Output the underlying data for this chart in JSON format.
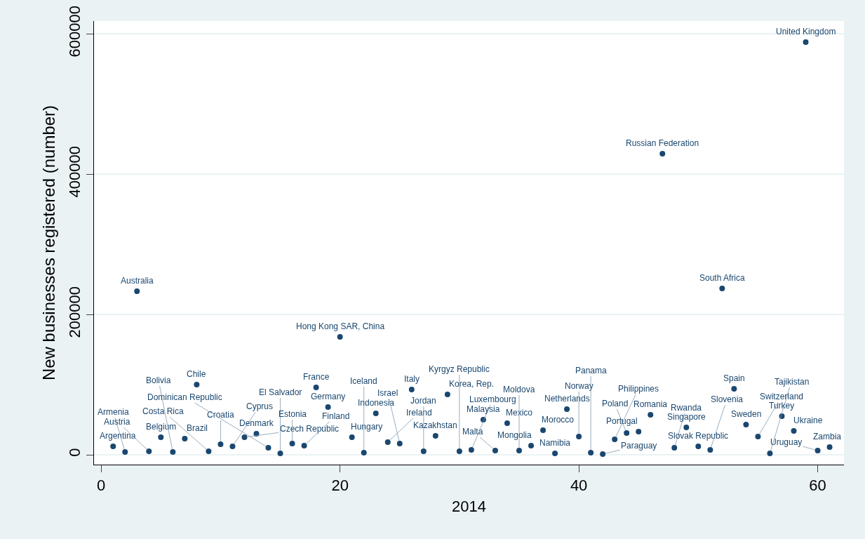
{
  "chart_data": {
    "type": "scatter",
    "xlabel": "2014",
    "ylabel": "New businesses registered (number)",
    "x": [
      1,
      2,
      3,
      4,
      5,
      6,
      7,
      8,
      9,
      10,
      11,
      12,
      13,
      14,
      15,
      16,
      17,
      18,
      19,
      20,
      21,
      22,
      23,
      24,
      25,
      26,
      27,
      28,
      29,
      30,
      31,
      32,
      33,
      34,
      35,
      36,
      37,
      38,
      39,
      40,
      41,
      42,
      43,
      44,
      45,
      46,
      47,
      48,
      49,
      50,
      51,
      52,
      53,
      54,
      55,
      56,
      57,
      58,
      59,
      60,
      61
    ],
    "values": [
      12000,
      4000,
      233000,
      5000,
      25000,
      4000,
      23000,
      100000,
      5000,
      15000,
      12000,
      25000,
      30000,
      10000,
      2000,
      16000,
      13000,
      96000,
      68000,
      168000,
      25000,
      3000,
      59000,
      18000,
      16000,
      93000,
      5000,
      27000,
      86000,
      5000,
      7000,
      50000,
      6000,
      45000,
      6000,
      13000,
      35000,
      2000,
      65000,
      26000,
      3000,
      1000,
      22000,
      31000,
      33000,
      57000,
      429000,
      10000,
      39000,
      12000,
      7000,
      237000,
      94000,
      43000,
      26000,
      2000,
      55000,
      34000,
      588000,
      6000,
      11000
    ],
    "color": "#1a476f",
    "marker": "circle",
    "grid": "y",
    "xlim": [
      -0.6,
      62.2
    ],
    "xticks": [
      0,
      20,
      40,
      60
    ],
    "ylim": [
      -14000,
      618000
    ],
    "yticks": [
      0,
      200000,
      400000,
      600000
    ],
    "annotations": [
      {
        "text": "Argentina",
        "x": 1,
        "y": 12000
      },
      {
        "text": "Armenia",
        "x": 2,
        "y": 4000
      },
      {
        "text": "Australia",
        "x": 3,
        "y": 233000
      },
      {
        "text": "Austria",
        "x": 4,
        "y": 5000
      },
      {
        "text": "Belgium",
        "x": 5,
        "y": 25000
      },
      {
        "text": "Bolivia",
        "x": 6,
        "y": 4000
      },
      {
        "text": "Brazil",
        "x": 7,
        "y": 23000
      },
      {
        "text": "Chile",
        "x": 8,
        "y": 100000
      },
      {
        "text": "Costa Rica",
        "x": 9,
        "y": 5000
      },
      {
        "text": "Croatia",
        "x": 10,
        "y": 15000
      },
      {
        "text": "Cyprus",
        "x": 11,
        "y": 12000
      },
      {
        "text": "Czech Republic",
        "x": 12,
        "y": 25000
      },
      {
        "text": "Denmark",
        "x": 13,
        "y": 30000
      },
      {
        "text": "Dominican Republic",
        "x": 14,
        "y": 10000
      },
      {
        "text": "El Salvador",
        "x": 15,
        "y": 2000
      },
      {
        "text": "Estonia",
        "x": 16,
        "y": 16000
      },
      {
        "text": "Finland",
        "x": 17,
        "y": 13000
      },
      {
        "text": "France",
        "x": 18,
        "y": 96000
      },
      {
        "text": "Germany",
        "x": 19,
        "y": 68000
      },
      {
        "text": "Hong Kong SAR, China",
        "x": 20,
        "y": 168000
      },
      {
        "text": "Hungary",
        "x": 21,
        "y": 25000
      },
      {
        "text": "Iceland",
        "x": 22,
        "y": 3000
      },
      {
        "text": "Indonesia",
        "x": 23,
        "y": 59000
      },
      {
        "text": "Ireland",
        "x": 24,
        "y": 18000
      },
      {
        "text": "Israel",
        "x": 25,
        "y": 16000
      },
      {
        "text": "Italy",
        "x": 26,
        "y": 93000
      },
      {
        "text": "Jordan",
        "x": 27,
        "y": 5000
      },
      {
        "text": "Kazakhstan",
        "x": 28,
        "y": 27000
      },
      {
        "text": "Korea, Rep.",
        "x": 29,
        "y": 86000
      },
      {
        "text": "Kyrgyz Republic",
        "x": 30,
        "y": 5000
      },
      {
        "text": "Luxembourg",
        "x": 31,
        "y": 7000
      },
      {
        "text": "Malaysia",
        "x": 32,
        "y": 50000
      },
      {
        "text": "Malta",
        "x": 33,
        "y": 6000
      },
      {
        "text": "Mexico",
        "x": 34,
        "y": 45000
      },
      {
        "text": "Moldova",
        "x": 35,
        "y": 6000
      },
      {
        "text": "Mongolia",
        "x": 36,
        "y": 13000
      },
      {
        "text": "Morocco",
        "x": 37,
        "y": 35000
      },
      {
        "text": "Namibia",
        "x": 38,
        "y": 2000
      },
      {
        "text": "Netherlands",
        "x": 39,
        "y": 65000
      },
      {
        "text": "Norway",
        "x": 40,
        "y": 26000
      },
      {
        "text": "Panama",
        "x": 41,
        "y": 3000
      },
      {
        "text": "Paraguay",
        "x": 42,
        "y": 1000
      },
      {
        "text": "Philippines",
        "x": 43,
        "y": 22000
      },
      {
        "text": "Poland",
        "x": 44,
        "y": 31000
      },
      {
        "text": "Portugal",
        "x": 45,
        "y": 33000
      },
      {
        "text": "Romania",
        "x": 46,
        "y": 57000
      },
      {
        "text": "Russian Federation",
        "x": 47,
        "y": 429000
      },
      {
        "text": "Rwanda",
        "x": 48,
        "y": 10000
      },
      {
        "text": "Singapore",
        "x": 49,
        "y": 39000
      },
      {
        "text": "Slovak Republic",
        "x": 50,
        "y": 12000
      },
      {
        "text": "Slovenia",
        "x": 51,
        "y": 7000
      },
      {
        "text": "South Africa",
        "x": 52,
        "y": 237000
      },
      {
        "text": "Spain",
        "x": 53,
        "y": 94000
      },
      {
        "text": "Sweden",
        "x": 54,
        "y": 43000
      },
      {
        "text": "Switzerland",
        "x": 55,
        "y": 26000
      },
      {
        "text": "Tajikistan",
        "x": 56,
        "y": 2000
      },
      {
        "text": "Turkey",
        "x": 57,
        "y": 55000
      },
      {
        "text": "Ukraine",
        "x": 58,
        "y": 34000
      },
      {
        "text": "United Kingdom",
        "x": 59,
        "y": 588000
      },
      {
        "text": "Uruguay",
        "x": 60,
        "y": 6000
      },
      {
        "text": "Zambia",
        "x": 61,
        "y": 11000
      }
    ]
  }
}
